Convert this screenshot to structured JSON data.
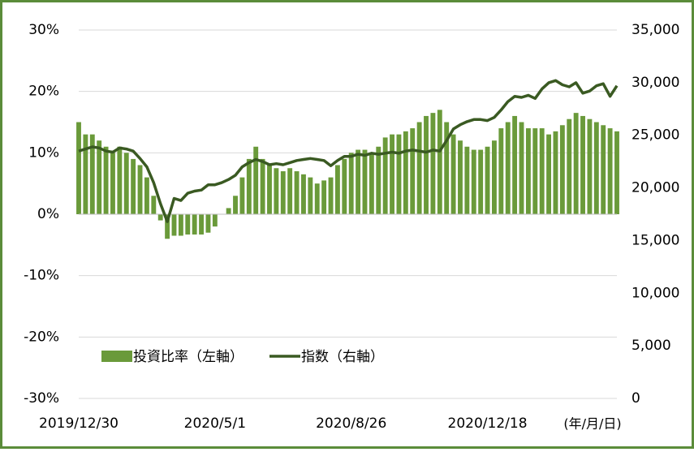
{
  "chart_data": {
    "type": "bar_line",
    "categories": [
      "2019/12/30",
      null,
      null,
      null,
      null,
      null,
      null,
      null,
      null,
      null,
      null,
      null,
      null,
      null,
      null,
      null,
      null,
      null,
      null,
      null,
      "2020/5/1",
      null,
      null,
      null,
      null,
      null,
      null,
      null,
      null,
      null,
      null,
      null,
      null,
      null,
      null,
      null,
      null,
      null,
      null,
      null,
      "2020/8/26",
      null,
      null,
      null,
      null,
      null,
      null,
      null,
      null,
      null,
      null,
      null,
      null,
      null,
      null,
      null,
      null,
      null,
      null,
      null,
      "2020/12/18",
      null,
      null,
      null,
      null,
      null,
      null,
      null,
      null,
      null,
      null,
      null,
      null,
      null,
      null,
      null,
      null,
      null,
      null,
      null
    ],
    "x_unit_label": "(年/月/日)",
    "series": [
      {
        "name": "投資比率（左軸）",
        "color": "#6a9a3a",
        "kind": "bar",
        "values": [
          15,
          13,
          13,
          12,
          11,
          10,
          11,
          10,
          9,
          8,
          6,
          3,
          -1,
          -4,
          -3.5,
          -3.5,
          -3.3,
          -3.3,
          -3.3,
          -3,
          -2,
          0,
          1,
          3,
          6,
          9,
          11,
          9,
          8,
          7.5,
          7,
          7.5,
          7,
          6.5,
          6,
          5,
          5.5,
          6,
          8,
          9,
          10,
          10.5,
          10.5,
          10,
          11,
          12.5,
          13,
          13,
          13.5,
          14,
          15,
          16,
          16.5,
          17,
          15,
          13,
          12,
          11,
          10.5,
          10.5,
          11,
          12,
          14,
          15,
          16,
          15,
          14,
          14,
          14,
          13,
          13.5,
          14.5,
          15.5,
          16.5,
          16,
          15.5,
          15,
          14.5,
          14,
          13.5
        ]
      },
      {
        "name": "指数（右軸）",
        "color": "#3a5a22",
        "kind": "line",
        "axis": "y2",
        "values": [
          23500,
          23700,
          23900,
          23800,
          23500,
          23400,
          23800,
          23700,
          23500,
          22800,
          22000,
          20500,
          18500,
          16800,
          19000,
          18800,
          19500,
          19700,
          19800,
          20300,
          20300,
          20500,
          20800,
          21200,
          22000,
          22400,
          22700,
          22500,
          22200,
          22300,
          22200,
          22400,
          22600,
          22700,
          22800,
          22700,
          22600,
          22100,
          22600,
          23000,
          23000,
          23200,
          23100,
          23300,
          23200,
          23300,
          23400,
          23300,
          23500,
          23600,
          23500,
          23400,
          23600,
          23500,
          24500,
          25600,
          26000,
          26300,
          26500,
          26500,
          26400,
          26700,
          27400,
          28200,
          28700,
          28600,
          28800,
          28500,
          29400,
          30000,
          30200,
          29800,
          29600,
          30000,
          29000,
          29200,
          29700,
          29900,
          28700,
          29700
        ]
      }
    ],
    "ylim": [
      -30,
      30
    ],
    "yticks": [
      {
        "value": -30,
        "label": "-30%"
      },
      {
        "value": -20,
        "label": "-20%"
      },
      {
        "value": -10,
        "label": "-10%"
      },
      {
        "value": 0,
        "label": "0%"
      },
      {
        "value": 10,
        "label": "10%"
      },
      {
        "value": 20,
        "label": "20%"
      },
      {
        "value": 30,
        "label": "30%"
      }
    ],
    "y2lim": [
      0,
      35000
    ],
    "y2ticks": [
      0,
      {
        "value": 5000,
        "label": "5,000"
      },
      {
        "value": 10000,
        "label": "10,000"
      },
      {
        "value": 15000,
        "label": "15,000"
      },
      {
        "value": 20000,
        "label": "20,000"
      },
      {
        "value": 25000,
        "label": "25,000"
      },
      {
        "value": 30000,
        "label": "30,000"
      },
      {
        "value": 35000,
        "label": "35,000"
      }
    ],
    "grid": true
  }
}
